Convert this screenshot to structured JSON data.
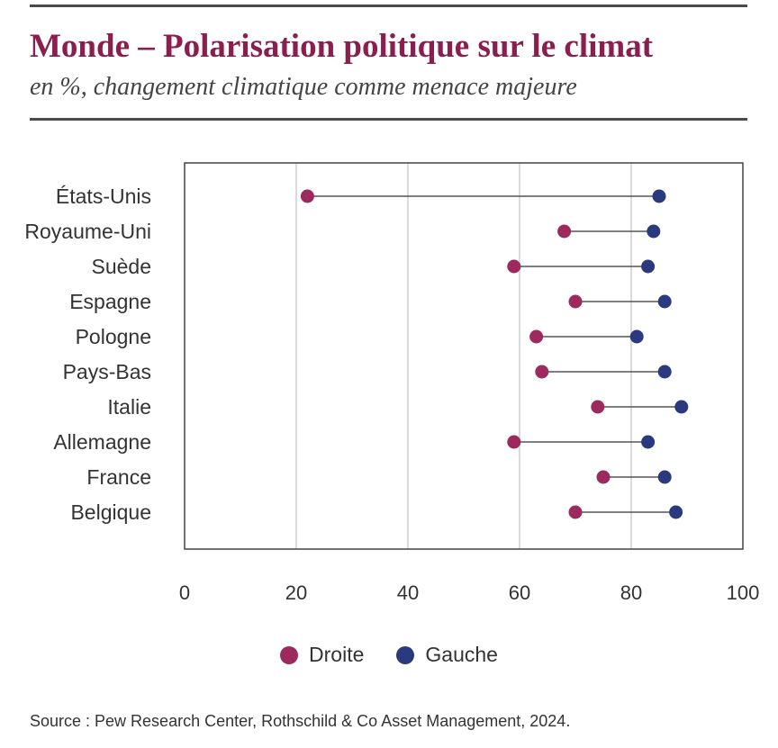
{
  "header": {
    "title": "Monde – Polarisation politique sur le climat",
    "subtitle": "en %, changement climatique comme menace majeure"
  },
  "colors": {
    "droite": "#9c2a5e",
    "gauche": "#2b3a7e",
    "title": "#8a1e4f"
  },
  "chart_data": {
    "type": "dumbbell",
    "title": "Monde – Polarisation politique sur le climat",
    "subtitle": "en %, changement climatique comme menace majeure",
    "xlabel": "",
    "ylabel": "",
    "xlim": [
      0,
      100
    ],
    "x_ticks": [
      0,
      20,
      40,
      60,
      80,
      100
    ],
    "grid": "vertical",
    "legend_position": "bottom",
    "categories": [
      "États-Unis",
      "Royaume-Uni",
      "Suède",
      "Espagne",
      "Pologne",
      "Pays-Bas",
      "Italie",
      "Allemagne",
      "France",
      "Belgique"
    ],
    "series": [
      {
        "name": "Droite",
        "values": [
          22,
          68,
          59,
          70,
          63,
          64,
          74,
          59,
          75,
          70
        ]
      },
      {
        "name": "Gauche",
        "values": [
          85,
          84,
          83,
          86,
          81,
          86,
          89,
          83,
          86,
          88
        ]
      }
    ]
  },
  "source": "Source : Pew Research Center, Rothschild & Co Asset Management, 2024."
}
